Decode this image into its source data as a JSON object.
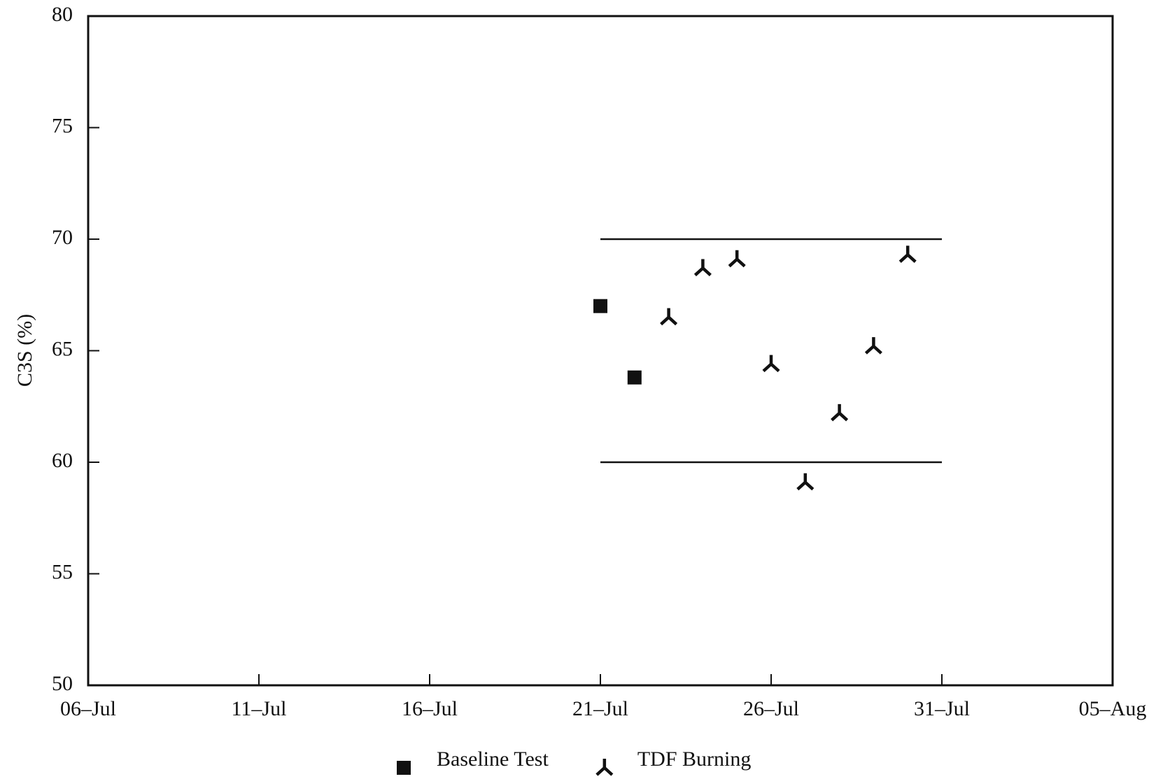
{
  "chart_data": {
    "type": "scatter",
    "ylabel": "C3S (%)",
    "xlim": [
      "06–Jul",
      "05–Aug"
    ],
    "xticks": [
      "06–Jul",
      "11–Jul",
      "16–Jul",
      "21–Jul",
      "26–Jul",
      "31–Jul",
      "05–Aug"
    ],
    "ylim": [
      50,
      80
    ],
    "yticks": [
      50,
      55,
      60,
      65,
      70,
      75,
      80
    ],
    "grid": false,
    "legend": "bottom",
    "series": [
      {
        "name": "Baseline Test",
        "color": "#111111",
        "marker": "square",
        "x": [
          "21–Jul",
          "22–Jul"
        ],
        "values": [
          67.0,
          63.8
        ]
      },
      {
        "name": "TDF Burning",
        "color": "#111111",
        "marker": "tri",
        "x": [
          "23–Jul",
          "24–Jul",
          "25–Jul",
          "26–Jul",
          "27–Jul",
          "28–Jul",
          "29–Jul",
          "30–Jul"
        ],
        "values": [
          66.5,
          68.7,
          69.1,
          64.4,
          59.1,
          62.2,
          65.2,
          69.3
        ]
      }
    ],
    "hlines": [
      {
        "y": 70,
        "x": [
          "21–Jul",
          "31–Jul"
        ]
      },
      {
        "y": 60,
        "x": [
          "21–Jul",
          "31–Jul"
        ]
      }
    ]
  }
}
